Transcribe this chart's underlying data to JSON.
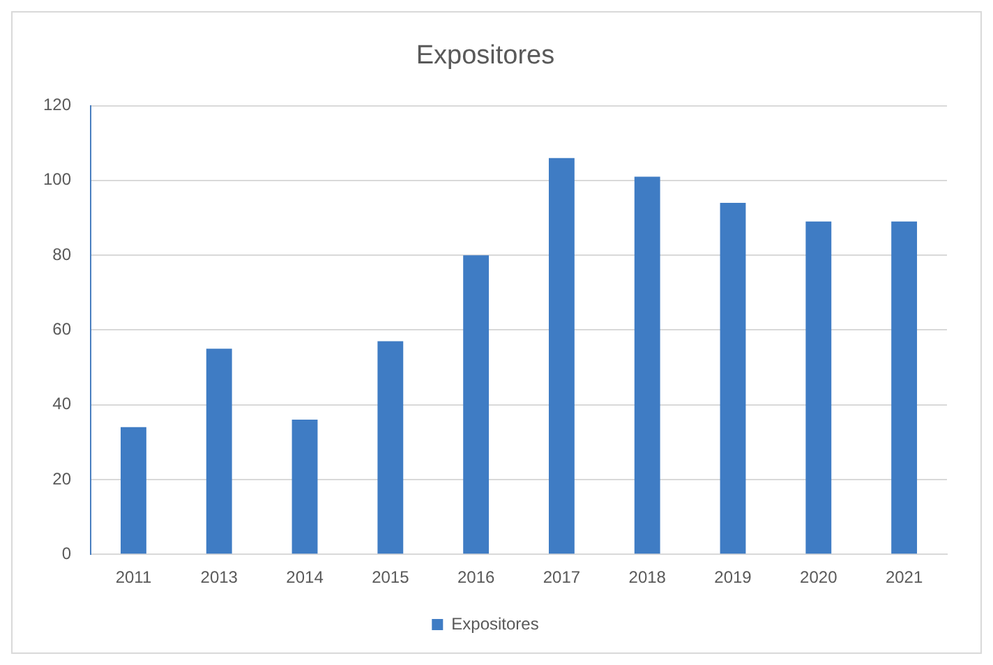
{
  "chart_data": {
    "type": "bar",
    "title": "Expositores",
    "categories": [
      "2011",
      "2013",
      "2014",
      "2015",
      "2016",
      "2017",
      "2018",
      "2019",
      "2020",
      "2021"
    ],
    "series": [
      {
        "name": "Expositores",
        "color": "#3f7cc4",
        "values": [
          34,
          55,
          36,
          57,
          80,
          106,
          101,
          94,
          89,
          89
        ]
      }
    ],
    "ylim": [
      0,
      120
    ],
    "yticks": [
      0,
      20,
      40,
      60,
      80,
      100,
      120
    ],
    "grid": "y",
    "legend": "bottom"
  }
}
